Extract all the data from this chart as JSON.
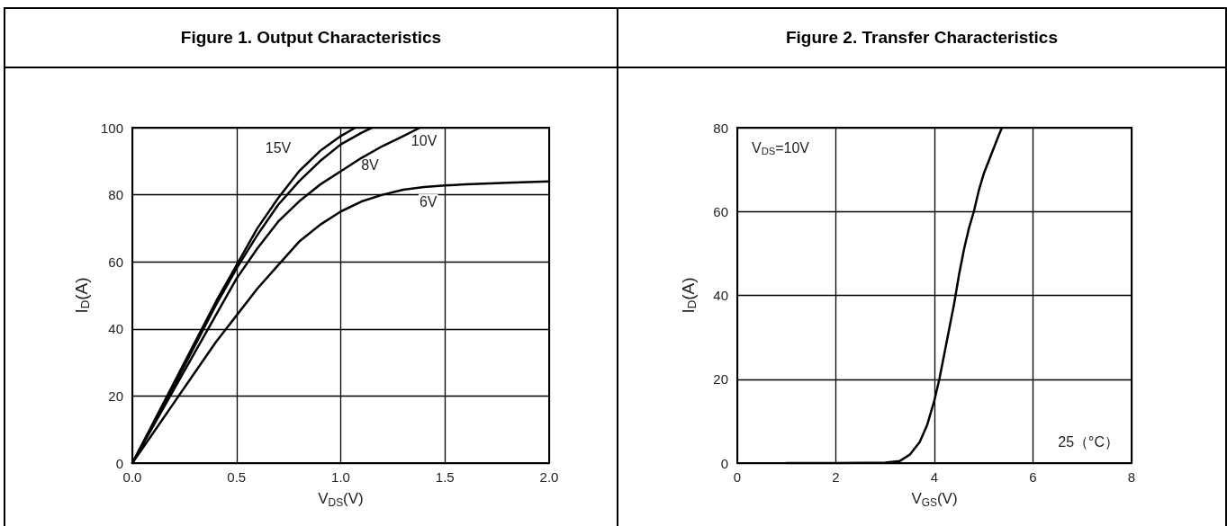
{
  "chart_data": [
    {
      "type": "line",
      "title": "Figure 1. Output Characteristics",
      "xlabel": "V$_{DS}$(V)",
      "ylabel": "I$_{D}$(A)",
      "xlim": [
        0,
        2
      ],
      "xticks": [
        {
          "value": 0,
          "label": "0.0"
        },
        0.5,
        {
          "value": 1,
          "label": "1.0"
        },
        1.5,
        {
          "value": 2,
          "label": "2.0"
        }
      ],
      "ylim": [
        0,
        100
      ],
      "yticks": [
        0,
        20,
        40,
        60,
        80,
        100
      ],
      "grid": true,
      "marker": "none",
      "line_style": "solid",
      "series": [
        {
          "color": "#000000",
          "x": [
            0,
            0.1,
            0.2,
            0.3,
            0.4,
            0.5,
            0.6,
            0.7,
            0.8,
            0.9,
            1.0,
            1.07
          ],
          "values": [
            0,
            12,
            24,
            36,
            48,
            59,
            70,
            79,
            87,
            93,
            97.5,
            100
          ]
        },
        {
          "color": "#000000",
          "x": [
            0,
            0.1,
            0.2,
            0.3,
            0.4,
            0.5,
            0.6,
            0.7,
            0.8,
            0.9,
            1.0,
            1.1,
            1.15
          ],
          "values": [
            0,
            11.5,
            23,
            35,
            47,
            58,
            68,
            77,
            84,
            90,
            95,
            98.5,
            100
          ]
        },
        {
          "color": "#000000",
          "x": [
            0,
            0.1,
            0.2,
            0.3,
            0.4,
            0.5,
            0.6,
            0.7,
            0.8,
            0.9,
            1.0,
            1.1,
            1.2,
            1.3,
            1.38
          ],
          "values": [
            0,
            11,
            22,
            33,
            44,
            55,
            64,
            72,
            78,
            83,
            87,
            91,
            94.5,
            97.5,
            100
          ]
        },
        {
          "color": "#000000",
          "x": [
            0,
            0.1,
            0.2,
            0.3,
            0.4,
            0.5,
            0.6,
            0.7,
            0.8,
            0.9,
            1.0,
            1.1,
            1.2,
            1.3,
            1.4,
            1.5,
            1.6,
            1.8,
            2.0
          ],
          "values": [
            0,
            9,
            18,
            27,
            36,
            44,
            52,
            59,
            66,
            71,
            75,
            78,
            80,
            81.5,
            82.3,
            82.8,
            83.1,
            83.6,
            84
          ]
        }
      ],
      "annotations": [
        {
          "text": "15V",
          "x": 0.7,
          "y": 94
        },
        {
          "text": "10V",
          "x": 1.4,
          "y": 96
        },
        {
          "text": "8V",
          "x": 1.14,
          "y": 89
        },
        {
          "text": "6V",
          "x": 1.42,
          "y": 78
        }
      ]
    },
    {
      "type": "line",
      "title": "Figure 2. Transfer Characteristics",
      "xlabel": "V$_{GS}$(V)",
      "ylabel": "I$_{D}$(A)",
      "xlim": [
        0,
        8
      ],
      "xticks": [
        0,
        2,
        4,
        6,
        8
      ],
      "ylim": [
        0,
        80
      ],
      "yticks": [
        0,
        20,
        40,
        60,
        80
      ],
      "grid": true,
      "marker": "none",
      "line_style": "solid",
      "series": [
        {
          "color": "#000000",
          "x": [
            1,
            2,
            3,
            3.3,
            3.5,
            3.7,
            3.85,
            4.0,
            4.1,
            4.2,
            4.3,
            4.4,
            4.5,
            4.6,
            4.7,
            4.8,
            4.9,
            5.0,
            5.1,
            5.2,
            5.3,
            5.37
          ],
          "values": [
            0,
            0,
            0.1,
            0.5,
            2,
            5,
            9,
            15,
            20,
            26,
            32,
            38,
            45,
            51,
            56,
            60,
            65,
            69,
            72,
            75,
            78,
            80
          ]
        }
      ],
      "annotations": [
        "V$_{DS}$=10V",
        "25（°C）"
      ]
    }
  ]
}
